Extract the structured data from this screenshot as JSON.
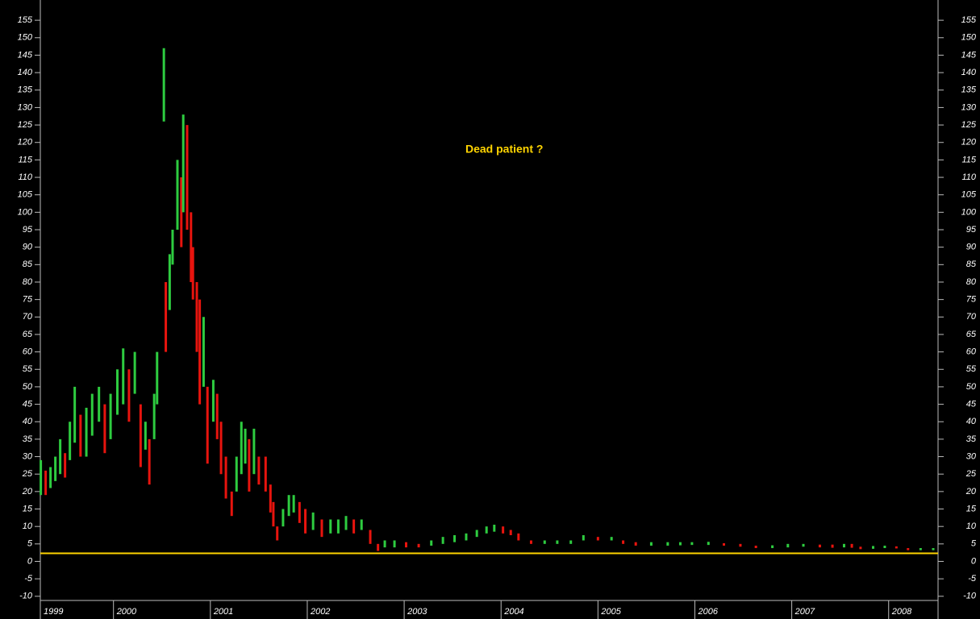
{
  "chart_data": {
    "type": "range",
    "annotation": "Dead patient ?",
    "x": [
      1999.25,
      1999.3,
      1999.35,
      1999.4,
      1999.45,
      1999.5,
      1999.55,
      1999.6,
      1999.66,
      1999.72,
      1999.78,
      1999.85,
      1999.91,
      1999.97,
      2000.04,
      2000.1,
      2000.16,
      2000.22,
      2000.28,
      2000.33,
      2000.37,
      2000.42,
      2000.45,
      2000.52,
      2000.54,
      2000.58,
      2000.61,
      2000.66,
      2000.7,
      2000.72,
      2000.76,
      2000.8,
      2000.82,
      2000.86,
      2000.89,
      2000.93,
      2000.97,
      2001.03,
      2001.07,
      2001.11,
      2001.16,
      2001.22,
      2001.27,
      2001.32,
      2001.36,
      2001.4,
      2001.45,
      2001.5,
      2001.57,
      2001.62,
      2001.65,
      2001.69,
      2001.75,
      2001.81,
      2001.86,
      2001.92,
      2001.98,
      2002.06,
      2002.15,
      2002.24,
      2002.32,
      2002.4,
      2002.48,
      2002.56,
      2002.65,
      2002.73,
      2002.8,
      2002.9,
      2003.02,
      2003.15,
      2003.28,
      2003.4,
      2003.52,
      2003.64,
      2003.75,
      2003.85,
      2003.93,
      2004.02,
      2004.1,
      2004.18,
      2004.31,
      2004.45,
      2004.58,
      2004.72,
      2004.85,
      2005.0,
      2005.14,
      2005.26,
      2005.39,
      2005.55,
      2005.72,
      2005.85,
      2005.97,
      2006.14,
      2006.3,
      2006.47,
      2006.63,
      2006.8,
      2006.96,
      2007.12,
      2007.29,
      2007.42,
      2007.54,
      2007.62,
      2007.71,
      2007.84,
      2007.96,
      2008.08,
      2008.2,
      2008.33,
      2008.46
    ],
    "low": [
      19,
      19,
      21,
      23,
      25,
      24,
      29,
      34,
      30,
      30,
      36,
      40,
      31,
      35,
      42,
      45,
      40,
      48,
      27,
      32,
      22,
      35,
      45,
      126,
      60,
      72,
      85,
      95,
      90,
      100,
      95,
      80,
      75,
      60,
      45,
      50,
      28,
      40,
      35,
      25,
      18,
      13,
      20,
      25,
      28,
      20,
      25,
      22,
      20,
      14,
      10,
      6,
      10,
      13,
      14,
      11,
      8,
      9,
      7,
      8,
      8,
      9,
      8,
      9,
      5,
      3,
      4,
      4,
      4,
      4,
      4.5,
      5,
      5.5,
      6,
      7,
      8,
      8.5,
      8,
      7.5,
      6,
      5,
      5,
      5,
      5,
      6,
      6,
      6,
      5,
      4.5,
      4.5,
      4.5,
      4.6,
      4.7,
      4.7,
      4.5,
      4.2,
      3.8,
      3.8,
      4,
      4.2,
      4,
      3.9,
      4,
      3.9,
      3.5,
      3.6,
      3.8,
      3.7,
      3.2,
      3.2,
      3.2
    ],
    "high": [
      29,
      26,
      27,
      30,
      35,
      31,
      40,
      50,
      42,
      44,
      48,
      50,
      45,
      48,
      55,
      61,
      55,
      60,
      45,
      40,
      35,
      48,
      60,
      147,
      80,
      88,
      95,
      115,
      110,
      128,
      125,
      100,
      90,
      80,
      75,
      70,
      50,
      52,
      48,
      40,
      30,
      20,
      30,
      40,
      38,
      35,
      38,
      30,
      30,
      22,
      17,
      10,
      15,
      19,
      19,
      17,
      15,
      14,
      12,
      12,
      12,
      13,
      12,
      12,
      9,
      5,
      6,
      6,
      5.5,
      5,
      6,
      7,
      7.5,
      8,
      9,
      10,
      10.5,
      10,
      9,
      8,
      6,
      6,
      6,
      6,
      7.5,
      7,
      7,
      6,
      5.5,
      5.5,
      5.5,
      5.5,
      5.5,
      5.6,
      5.2,
      5,
      4.5,
      4.6,
      5,
      5,
      4.8,
      4.8,
      5,
      5,
      4.2,
      4.4,
      4.5,
      4.3,
      3.8,
      3.8,
      3.8
    ],
    "up_color": "#2ecc40",
    "down_color": "#e8140e",
    "reference_line": 2.3,
    "reference_color": "#ffd400",
    "ylim": [
      -11.2,
      160.8
    ],
    "yticks": [
      -10,
      -5,
      0,
      5,
      10,
      15,
      20,
      25,
      30,
      35,
      40,
      45,
      50,
      55,
      60,
      65,
      70,
      75,
      80,
      85,
      90,
      95,
      100,
      105,
      110,
      115,
      120,
      125,
      130,
      135,
      140,
      145,
      150,
      155
    ],
    "xlim": [
      1999.245,
      2008.51
    ],
    "xticks": [
      {
        "value": 1999.245,
        "label": "1999"
      },
      2000,
      2001,
      2002,
      2003,
      2004,
      2005,
      2006,
      2007,
      2008
    ]
  }
}
